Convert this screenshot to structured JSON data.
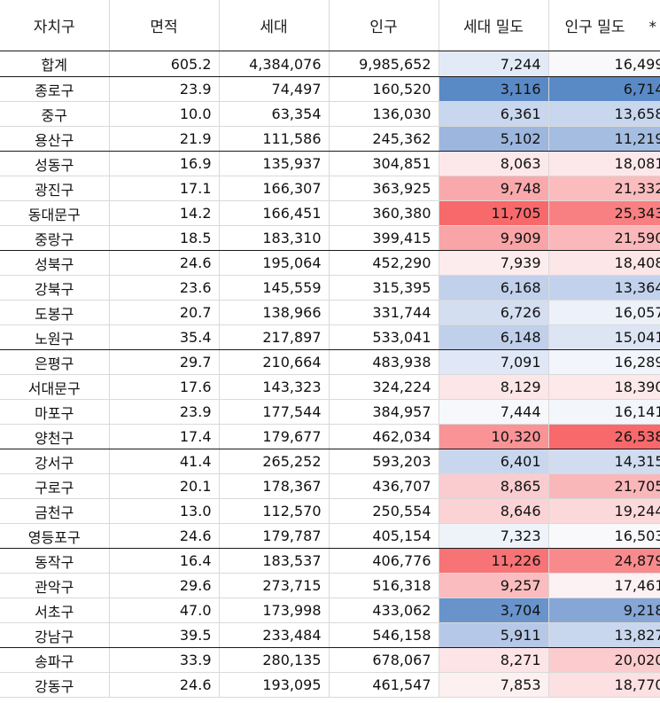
{
  "headers": [
    "자치구",
    "면적",
    "세대",
    "인구",
    "세대 밀도",
    "인구 밀도"
  ],
  "header_overflow_mark": "*",
  "rows": [
    {
      "name": "합계",
      "area": "605.2",
      "households": "4,384,076",
      "population": "9,985,652",
      "household_density": "7,244",
      "population_density": "16,499",
      "hd_color": "#e3eaf7",
      "pd_color": "#f9f9fb"
    },
    {
      "name": "종로구",
      "area": "23.9",
      "households": "74,497",
      "population": "160,520",
      "household_density": "3,116",
      "population_density": "6,714",
      "hd_color": "#5a8ac6",
      "pd_color": "#5a8ac6"
    },
    {
      "name": "중구",
      "area": "10.0",
      "households": "63,354",
      "population": "136,030",
      "household_density": "6,361",
      "population_density": "13,658",
      "hd_color": "#c8d6ee",
      "pd_color": "#c8d6ee"
    },
    {
      "name": "용산구",
      "area": "21.9",
      "households": "111,586",
      "population": "245,362",
      "household_density": "5,102",
      "population_density": "11,219",
      "hd_color": "#9cb6de",
      "pd_color": "#a5bde1"
    },
    {
      "name": "성동구",
      "area": "16.9",
      "households": "135,937",
      "population": "304,851",
      "household_density": "8,063",
      "population_density": "18,081",
      "hd_color": "#fce8ea",
      "pd_color": "#fce8ea"
    },
    {
      "name": "광진구",
      "area": "17.1",
      "households": "166,307",
      "population": "363,925",
      "household_density": "9,748",
      "population_density": "21,332",
      "hd_color": "#f9a9ac",
      "pd_color": "#fbbcbe"
    },
    {
      "name": "동대문구",
      "area": "14.2",
      "households": "166,451",
      "population": "360,380",
      "household_density": "11,705",
      "population_density": "25,343",
      "hd_color": "#f8696b",
      "pd_color": "#f98082"
    },
    {
      "name": "중랑구",
      "area": "18.5",
      "households": "183,310",
      "population": "399,415",
      "household_density": "9,909",
      "population_density": "21,590",
      "hd_color": "#f9a4a6",
      "pd_color": "#fab8ba"
    },
    {
      "name": "성북구",
      "area": "24.6",
      "households": "195,064",
      "population": "452,290",
      "household_density": "7,939",
      "population_density": "18,408",
      "hd_color": "#fdecee",
      "pd_color": "#fce6e8"
    },
    {
      "name": "강북구",
      "area": "23.6",
      "households": "145,559",
      "population": "315,395",
      "household_density": "6,168",
      "population_density": "13,364",
      "hd_color": "#c1d0eb",
      "pd_color": "#c3d2ec"
    },
    {
      "name": "도봉구",
      "area": "20.7",
      "households": "138,966",
      "population": "331,744",
      "household_density": "6,726",
      "population_density": "16,057",
      "hd_color": "#d4def1",
      "pd_color": "#edf1f9"
    },
    {
      "name": "노원구",
      "area": "35.4",
      "households": "217,897",
      "population": "533,041",
      "household_density": "6,148",
      "population_density": "15,041",
      "hd_color": "#c0cfea",
      "pd_color": "#dde5f4"
    },
    {
      "name": "은평구",
      "area": "29.7",
      "households": "210,664",
      "population": "483,938",
      "household_density": "7,091",
      "population_density": "16,289",
      "hd_color": "#e0e7f6",
      "pd_color": "#f2f5fb"
    },
    {
      "name": "서대문구",
      "area": "17.6",
      "households": "143,323",
      "population": "324,224",
      "household_density": "8,129",
      "population_density": "18,390",
      "hd_color": "#fce6e8",
      "pd_color": "#fde8ea"
    },
    {
      "name": "마포구",
      "area": "23.9",
      "households": "177,544",
      "population": "384,957",
      "household_density": "7,444",
      "population_density": "16,141",
      "hd_color": "#f6f8fc",
      "pd_color": "#f3f6fb"
    },
    {
      "name": "양천구",
      "area": "17.4",
      "households": "179,677",
      "population": "462,034",
      "household_density": "10,320",
      "population_density": "26,538",
      "hd_color": "#f99395",
      "pd_color": "#f8696b"
    },
    {
      "name": "강서구",
      "area": "41.4",
      "households": "265,252",
      "population": "593,203",
      "household_density": "6,401",
      "population_density": "14,315",
      "hd_color": "#c9d7ee",
      "pd_color": "#d1dcf0"
    },
    {
      "name": "구로구",
      "area": "20.1",
      "households": "178,367",
      "population": "436,707",
      "household_density": "8,865",
      "population_density": "21,705",
      "hd_color": "#fbcccf",
      "pd_color": "#fab7b9"
    },
    {
      "name": "금천구",
      "area": "13.0",
      "households": "112,570",
      "population": "250,554",
      "household_density": "8,646",
      "population_density": "19,244",
      "hd_color": "#fbd3d5",
      "pd_color": "#fbd8da"
    },
    {
      "name": "영등포구",
      "area": "24.6",
      "households": "179,787",
      "population": "405,154",
      "household_density": "7,323",
      "population_density": "16,503",
      "hd_color": "#eef2f9",
      "pd_color": "#f9f9fb"
    },
    {
      "name": "동작구",
      "area": "16.4",
      "households": "183,537",
      "population": "406,776",
      "household_density": "11,226",
      "population_density": "24,879",
      "hd_color": "#f87376",
      "pd_color": "#f98a8c"
    },
    {
      "name": "관악구",
      "area": "29.6",
      "households": "273,715",
      "population": "516,318",
      "household_density": "9,257",
      "population_density": "17,461",
      "hd_color": "#fabcbe",
      "pd_color": "#fdf2f3"
    },
    {
      "name": "서초구",
      "area": "47.0",
      "households": "173,998",
      "population": "433,062",
      "household_density": "3,704",
      "population_density": "9,218",
      "hd_color": "#6993cb",
      "pd_color": "#86a6d6"
    },
    {
      "name": "강남구",
      "area": "39.5",
      "households": "233,484",
      "population": "546,158",
      "household_density": "5,911",
      "population_density": "13,827",
      "hd_color": "#b6c8e7",
      "pd_color": "#c9d7ee"
    },
    {
      "name": "송파구",
      "area": "33.9",
      "households": "280,135",
      "population": "678,067",
      "household_density": "8,271",
      "population_density": "20,020",
      "hd_color": "#fde4e6",
      "pd_color": "#fbcbcd"
    },
    {
      "name": "강동구",
      "area": "24.6",
      "households": "193,095",
      "population": "461,547",
      "household_density": "7,853",
      "population_density": "18,770",
      "hd_color": "#fdf0f1",
      "pd_color": "#fce0e2"
    }
  ]
}
